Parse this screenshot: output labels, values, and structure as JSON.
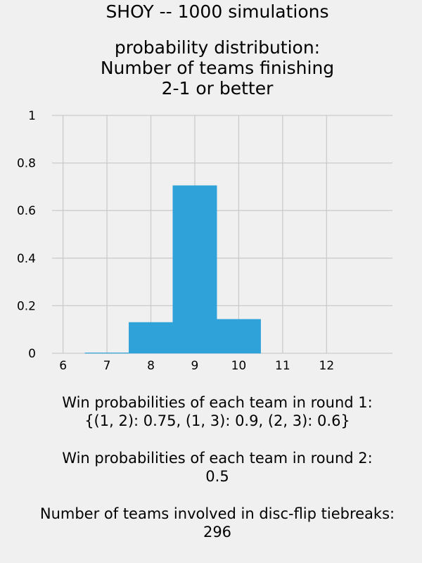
{
  "chart_data": {
    "type": "bar",
    "title_lines": [
      "SHOY -- 1000 simulations",
      "probability distribution:",
      "Number of teams finishing",
      "2-1 or better"
    ],
    "categories": [
      7,
      8,
      9,
      10
    ],
    "values": [
      0.002,
      0.13,
      0.705,
      0.143
    ],
    "x_ticks": [
      "6",
      "7",
      "8",
      "9",
      "10",
      "11",
      "12"
    ],
    "y_ticks": [
      "0",
      "0.2",
      "0.4",
      "0.6",
      "0.8",
      "1"
    ],
    "xlim": [
      5.75,
      13.5
    ],
    "ylim": [
      0,
      1
    ],
    "xlabel": "",
    "ylabel": "",
    "grid": true,
    "bar_color": "#30a2da",
    "grid_color": "#cbcbcb"
  },
  "captions": {
    "round1_label": "Win probabilities of each team in round 1:",
    "round1_value": "{(1, 2): 0.75, (1, 3): 0.9, (2, 3): 0.6}",
    "round2_label": "Win probabilities of each team in round 2:",
    "round2_value": "0.5",
    "tiebreak_label": "Number of teams involved in disc-flip tiebreaks:",
    "tiebreak_value": "296"
  }
}
